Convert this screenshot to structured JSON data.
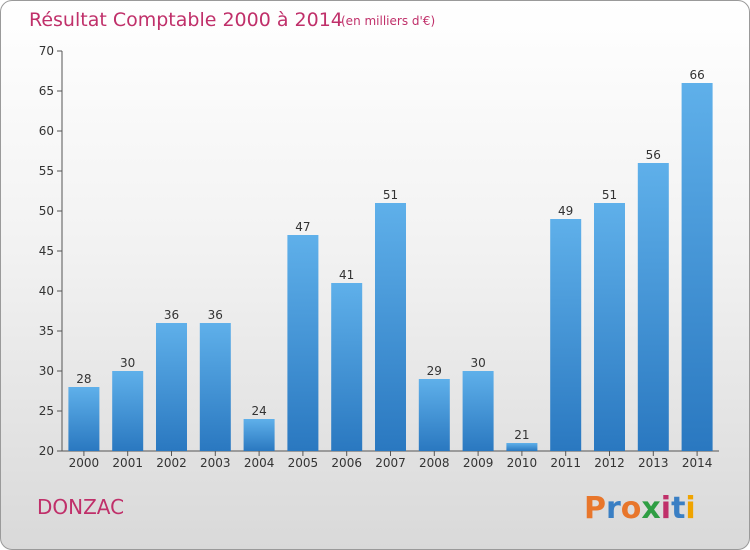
{
  "chart_data": {
    "type": "bar",
    "title": "Résultat Comptable 2000 à 2014",
    "subtitle": "(en milliers d'€)",
    "categories": [
      "2000",
      "2001",
      "2002",
      "2003",
      "2004",
      "2005",
      "2006",
      "2007",
      "2008",
      "2009",
      "2010",
      "2011",
      "2012",
      "2013",
      "2014"
    ],
    "values": [
      28,
      30,
      36,
      36,
      24,
      47,
      41,
      51,
      29,
      30,
      21,
      49,
      51,
      56,
      66
    ],
    "ylim": [
      20,
      70
    ],
    "yticks": [
      20,
      25,
      30,
      35,
      40,
      45,
      50,
      55,
      60,
      65,
      70
    ],
    "grid": false,
    "bar_color": "#3d8fd6"
  },
  "footer": {
    "commune": "DONZAC",
    "logo_letters": [
      "P",
      "r",
      "o",
      "x",
      "i",
      "t",
      "i"
    ],
    "logo_colors": [
      "#e8762b",
      "#3a7fc4",
      "#e8762b",
      "#2f9e44",
      "#c0306a",
      "#3a7fc4",
      "#f0a400"
    ]
  }
}
